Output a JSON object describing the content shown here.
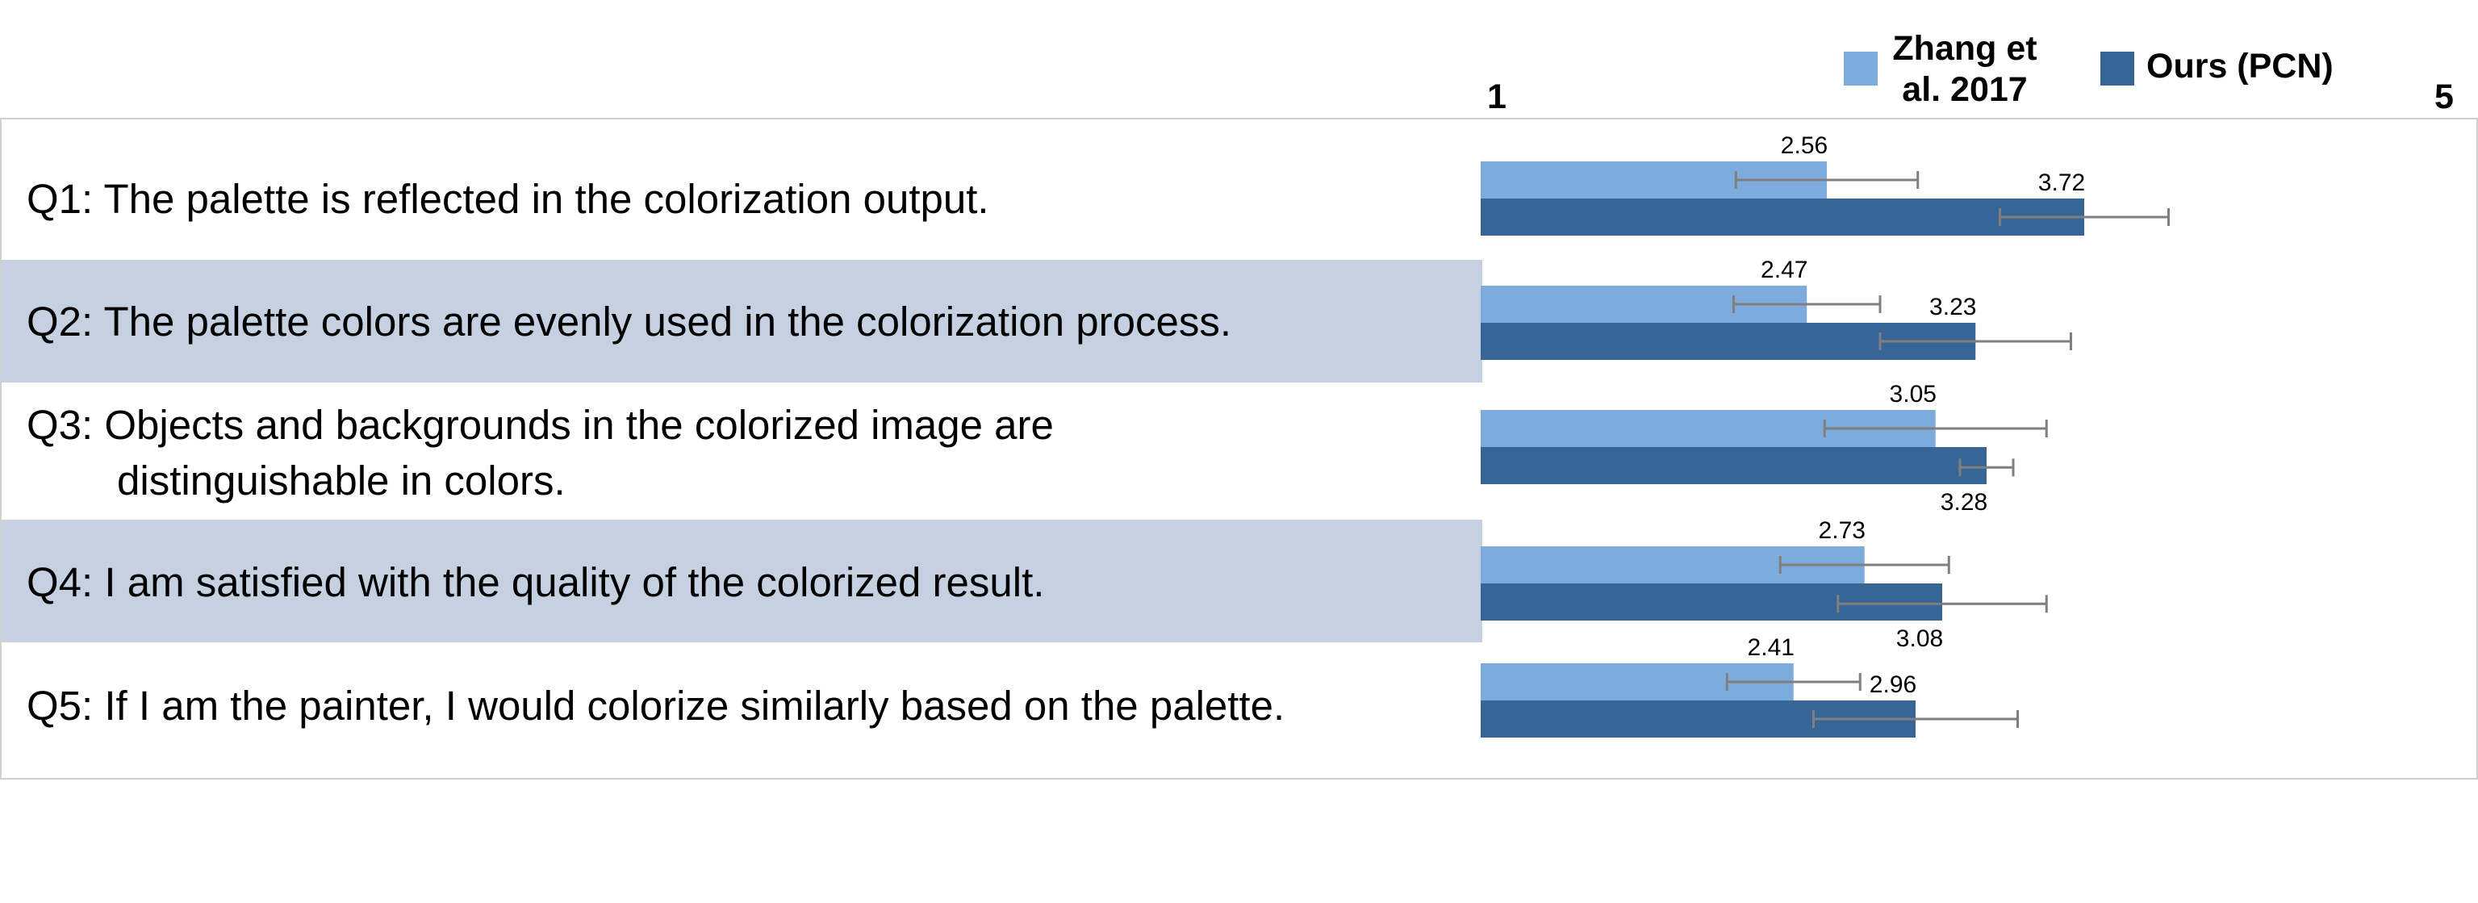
{
  "legend": {
    "series_a_line1": "Zhang et",
    "series_a_line2": "al. 2017",
    "series_b": "Ours (PCN)"
  },
  "axis": {
    "min_label": "1",
    "max_label": "5"
  },
  "questions": [
    {
      "prefix": "Q1:",
      "line1": "The palette is reflected in the colorization output.",
      "line2": ""
    },
    {
      "prefix": "Q2:",
      "line1": "The palette colors are evenly used in the colorization process.",
      "line2": ""
    },
    {
      "prefix": "Q3:",
      "line1": "Objects and backgrounds in the colorized image are",
      "line2": "distinguishable in colors."
    },
    {
      "prefix": "Q4:",
      "line1": "I am satisfied with the quality of the colorized result.",
      "line2": ""
    },
    {
      "prefix": "Q5:",
      "line1": "If I am the painter, I would colorize similarly based on the palette.",
      "line2": ""
    }
  ],
  "chart_data": {
    "type": "bar",
    "orientation": "horizontal",
    "categories": [
      "Q1",
      "Q2",
      "Q3",
      "Q4",
      "Q5"
    ],
    "xlim": [
      1,
      5
    ],
    "grid": false,
    "legend_position": "top",
    "series": [
      {
        "name": "Zhang et al. 2017",
        "color": "#7dabdc",
        "values": [
          2.56,
          2.47,
          3.05,
          2.73,
          2.41
        ],
        "value_labels": [
          "2.56",
          "2.47",
          "3.05",
          "2.73",
          "2.41"
        ],
        "error": [
          0.41,
          0.33,
          0.5,
          0.38,
          0.3
        ]
      },
      {
        "name": "Ours (PCN)",
        "color": "#376596",
        "values": [
          3.72,
          3.23,
          3.28,
          3.08,
          2.96
        ],
        "value_labels": [
          "3.72",
          "3.23",
          "3.28",
          "3.08",
          "2.96"
        ],
        "error": [
          0.38,
          0.43,
          0.12,
          0.47,
          0.46
        ]
      }
    ]
  },
  "colors": {
    "band_shade": "#c5d0e1",
    "error_bar": "#7f7f7f",
    "frame": "#d0d0d0"
  }
}
